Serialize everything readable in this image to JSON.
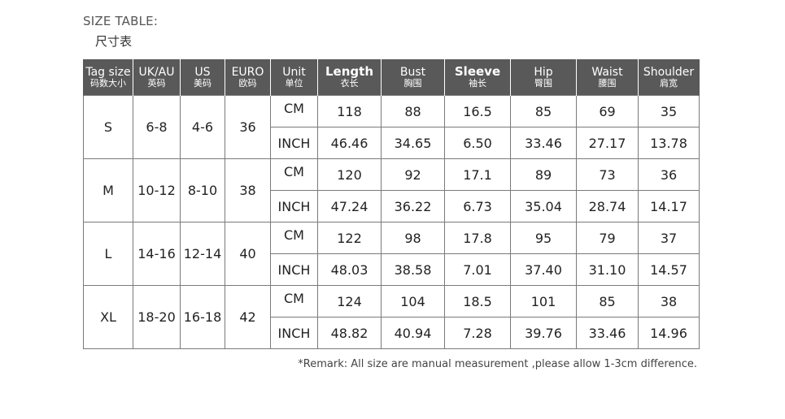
{
  "title": {
    "en": "SIZE TABLE:",
    "cn": "尺寸表"
  },
  "headers": [
    {
      "en": "Tag size",
      "cn": "码数大小",
      "big": false
    },
    {
      "en": "UK/AU",
      "cn": "英码",
      "big": false
    },
    {
      "en": "US",
      "cn": "美码",
      "big": false
    },
    {
      "en": "EURO",
      "cn": "欧码",
      "big": false
    },
    {
      "en": "Unit",
      "cn": "单位",
      "big": false
    },
    {
      "en": "Length",
      "cn": "衣长",
      "big": true
    },
    {
      "en": "Bust",
      "cn": "胸围",
      "big": false
    },
    {
      "en": "Sleeve",
      "cn": "袖长",
      "big": true
    },
    {
      "en": "Hip",
      "cn": "臀围",
      "big": false
    },
    {
      "en": "Waist",
      "cn": "腰围",
      "big": false
    },
    {
      "en": "Shoulder",
      "cn": "肩宽",
      "big": false
    }
  ],
  "sizes": [
    {
      "tag": "S",
      "uk_au": "6-8",
      "us": "4-6",
      "euro": "36",
      "cm": {
        "unit": "CM",
        "length": "118",
        "bust": "88",
        "sleeve": "16.5",
        "hip": "85",
        "waist": "69",
        "shoulder": "35"
      },
      "inch": {
        "unit": "INCH",
        "length": "46.46",
        "bust": "34.65",
        "sleeve": "6.50",
        "hip": "33.46",
        "waist": "27.17",
        "shoulder": "13.78"
      }
    },
    {
      "tag": "M",
      "uk_au": "10-12",
      "us": "8-10",
      "euro": "38",
      "cm": {
        "unit": "CM",
        "length": "120",
        "bust": "92",
        "sleeve": "17.1",
        "hip": "89",
        "waist": "73",
        "shoulder": "36"
      },
      "inch": {
        "unit": "INCH",
        "length": "47.24",
        "bust": "36.22",
        "sleeve": "6.73",
        "hip": "35.04",
        "waist": "28.74",
        "shoulder": "14.17"
      }
    },
    {
      "tag": "L",
      "uk_au": "14-16",
      "us": "12-14",
      "euro": "40",
      "cm": {
        "unit": "CM",
        "length": "122",
        "bust": "98",
        "sleeve": "17.8",
        "hip": "95",
        "waist": "79",
        "shoulder": "37"
      },
      "inch": {
        "unit": "INCH",
        "length": "48.03",
        "bust": "38.58",
        "sleeve": "7.01",
        "hip": "37.40",
        "waist": "31.10",
        "shoulder": "14.57"
      }
    },
    {
      "tag": "XL",
      "uk_au": "18-20",
      "us": "16-18",
      "euro": "42",
      "cm": {
        "unit": "CM",
        "length": "124",
        "bust": "104",
        "sleeve": "18.5",
        "hip": "101",
        "waist": "85",
        "shoulder": "38"
      },
      "inch": {
        "unit": "INCH",
        "length": "48.82",
        "bust": "40.94",
        "sleeve": "7.28",
        "hip": "39.76",
        "waist": "33.46",
        "shoulder": "14.96"
      }
    }
  ],
  "remark": "*Remark: All size are manual measurement ,please allow 1-3cm difference."
}
